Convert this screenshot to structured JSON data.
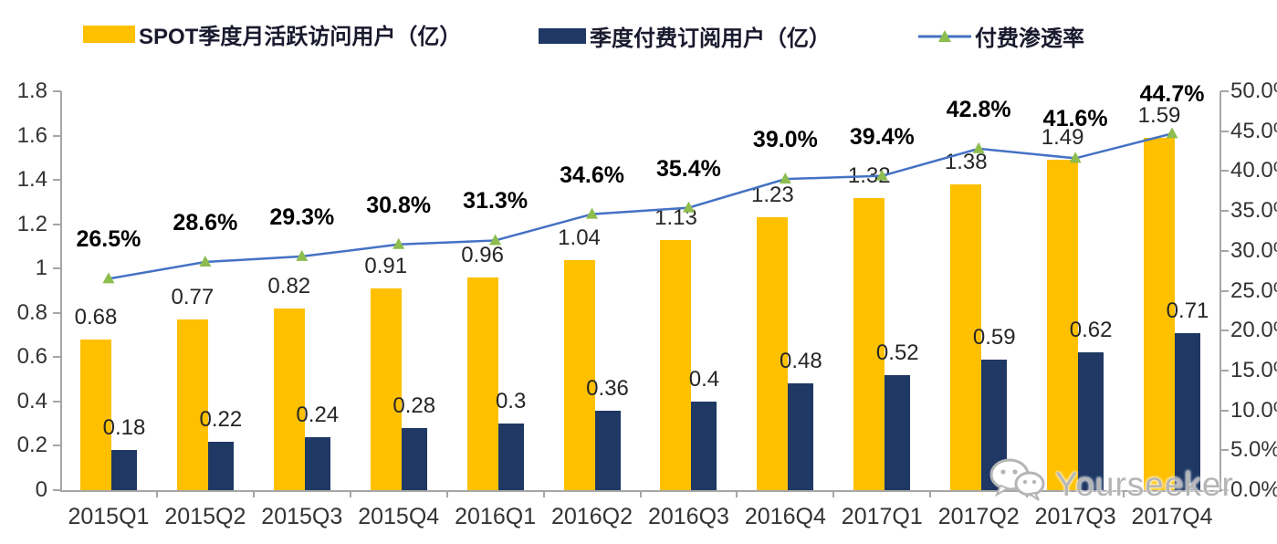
{
  "legend": [
    {
      "label": "SPOT季度月活跃访问用户（亿）",
      "type": "bar",
      "color": "#FFC000"
    },
    {
      "label": "季度付费订阅用户（亿）",
      "type": "bar",
      "color": "#1F3864"
    },
    {
      "label": "付费渗透率",
      "type": "line",
      "color": "#4472C4",
      "marker_color": "#8CBD4E"
    }
  ],
  "chart_data": {
    "type": "bar",
    "subtype": "combo-bar-line-dual-axis",
    "categories": [
      "2015Q1",
      "2015Q2",
      "2015Q3",
      "2015Q4",
      "2016Q1",
      "2016Q2",
      "2016Q3",
      "2016Q4",
      "2017Q1",
      "2017Q2",
      "2017Q3",
      "2017Q4"
    ],
    "series": [
      {
        "name": "SPOT季度月活跃访问用户（亿）",
        "type": "bar",
        "axis": "left",
        "color": "#FFC000",
        "values": [
          0.68,
          0.77,
          0.82,
          0.91,
          0.96,
          1.04,
          1.13,
          1.23,
          1.32,
          1.38,
          1.49,
          1.59
        ],
        "labels": [
          "0.68",
          "0.77",
          "0.82",
          "0.91",
          "0.96",
          "1.04",
          "1.13",
          "1.23",
          "1.32",
          "1.38",
          "1.49",
          "1.59"
        ]
      },
      {
        "name": "季度付费订阅用户（亿）",
        "type": "bar",
        "axis": "left",
        "color": "#1F3864",
        "values": [
          0.18,
          0.22,
          0.24,
          0.28,
          0.3,
          0.36,
          0.4,
          0.48,
          0.52,
          0.59,
          0.62,
          0.71
        ],
        "labels": [
          "0.18",
          "0.22",
          "0.24",
          "0.28",
          "0.3",
          "0.36",
          "0.4",
          "0.48",
          "0.52",
          "0.59",
          "0.62",
          "0.71"
        ]
      },
      {
        "name": "付费渗透率",
        "type": "line",
        "axis": "right",
        "color": "#4472C4",
        "marker": "triangle",
        "marker_color": "#8CBD4E",
        "values": [
          26.5,
          28.6,
          29.3,
          30.8,
          31.3,
          34.6,
          35.4,
          39.0,
          39.4,
          42.8,
          41.6,
          44.7
        ],
        "labels": [
          "26.5%",
          "28.6%",
          "29.3%",
          "30.8%",
          "31.3%",
          "34.6%",
          "35.4%",
          "39.0%",
          "39.4%",
          "42.8%",
          "41.6%",
          "44.7%"
        ]
      }
    ],
    "left_axis": {
      "min": 0,
      "max": 1.8,
      "step": 0.2,
      "ticks": [
        "0",
        "0.2",
        "0.4",
        "0.6",
        "0.8",
        "1",
        "1.2",
        "1.4",
        "1.6",
        "1.8"
      ]
    },
    "right_axis": {
      "min": 0,
      "max": 50,
      "step": 5,
      "ticks": [
        "0.0%",
        "5.0%",
        "10.0%",
        "15.0%",
        "20.0%",
        "25.0%",
        "30.0%",
        "35.0%",
        "40.0%",
        "45.0%",
        "50.0%"
      ]
    },
    "grid": false,
    "legend_position": "top",
    "axis_color": "#a6a6a6"
  },
  "watermark": {
    "label": "Yourseeker",
    "icon": "wechat-icon"
  }
}
